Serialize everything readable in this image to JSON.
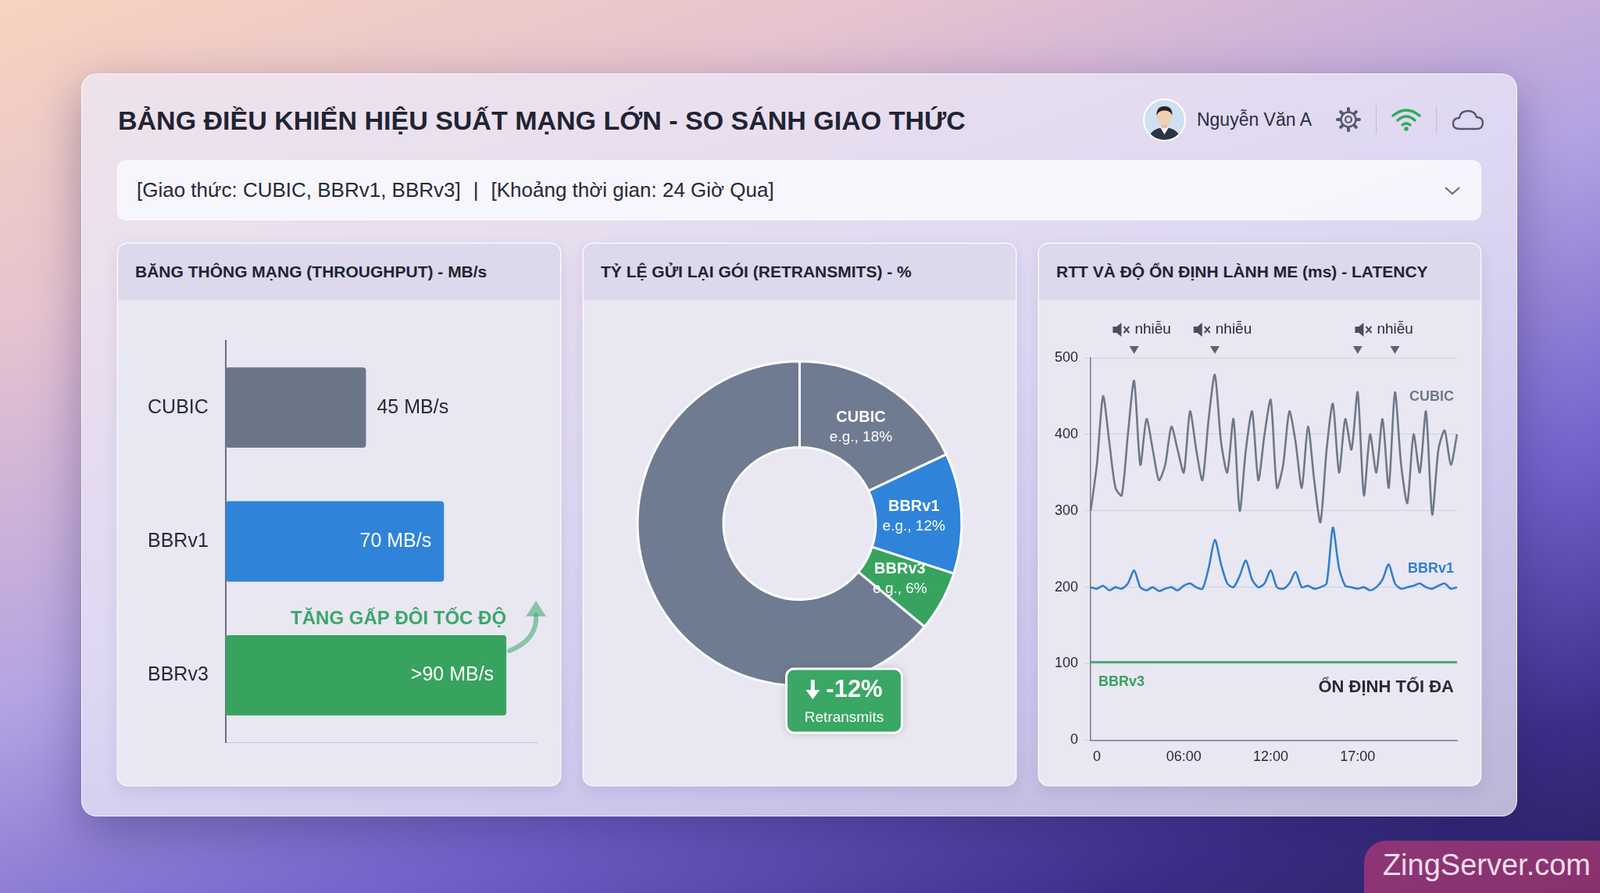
{
  "header": {
    "title": "BẢNG ĐIỀU KHIỂN HIỆU SUẤT MẠNG LỚN - SO SÁNH GIAO THỨC",
    "user": "Nguyễn Văn A",
    "filters": [
      "[Giao thức: CUBIC, BBRv1, BBRv3]",
      "[Khoảng thời gian: 24 Giờ Qua]"
    ],
    "separator": "|"
  },
  "watermark": "ZingServer.com",
  "chart_data": [
    {
      "type": "bar",
      "title": "BĂNG THÔNG MẠNG (THROUGHPUT) - MB/s",
      "orientation": "horizontal",
      "categories": [
        "CUBIC",
        "BBRv1",
        "BBRv3"
      ],
      "values": [
        45,
        70,
        90
      ],
      "value_labels": [
        "45 MB/s",
        "70 MB/s",
        ">90 MB/s"
      ],
      "colors": [
        "#6b7689",
        "#2f84d9",
        "#37a35f"
      ],
      "xlim": [
        0,
        100
      ],
      "tick_labels": "y",
      "data_labels": true,
      "grid": false,
      "annotations": [
        {
          "text": "TĂNG GẤP ĐÔI TỐC ĐỘ",
          "color": "#3aa76a"
        }
      ]
    },
    {
      "type": "doughnut",
      "title": "TỶ LỆ GỬI LẠI GÓI (RETRANSMITS) - %",
      "categories": [
        "CUBIC",
        "BBRv1",
        "BBRv3",
        null
      ],
      "values": [
        18,
        12,
        6,
        64
      ],
      "value_labels": [
        "e.g., 18%",
        "e.g., 12%",
        "e.g., 6%",
        null
      ],
      "colors": [
        "#6f7b90",
        "#2f84d9",
        "#37a35f",
        "#6f7b90"
      ],
      "data_labels": true,
      "annotations": [
        {
          "text": "-12%",
          "subtext": "Retransmits",
          "color": "#3aa765"
        }
      ]
    },
    {
      "type": "line",
      "title": "RTT VÀ ĐỘ ỔN ĐỊNH LÀNH ME (ms) - LATENCY",
      "categories": [
        null,
        "0",
        null,
        null,
        null,
        null,
        null,
        null,
        null,
        null,
        null,
        null,
        null,
        null,
        null,
        "06:00",
        null,
        null,
        null,
        null,
        null,
        null,
        null,
        null,
        null,
        null,
        null,
        null,
        null,
        "12:00",
        null,
        null,
        null,
        null,
        null,
        null,
        null,
        null,
        null,
        null,
        null,
        null,
        null,
        "17:00",
        null,
        null,
        null,
        null,
        null,
        null,
        null,
        null,
        null,
        null,
        null,
        null,
        null,
        null,
        null,
        null
      ],
      "series": [
        {
          "name": "CUBIC",
          "color": "#6e7889",
          "values": [
            300,
            360,
            450,
            390,
            330,
            320,
            400,
            470,
            360,
            420,
            380,
            340,
            360,
            410,
            380,
            350,
            430,
            380,
            340,
            420,
            478,
            390,
            350,
            420,
            300,
            380,
            430,
            340,
            400,
            445,
            330,
            360,
            430,
            390,
            330,
            410,
            340,
            285,
            380,
            440,
            350,
            420,
            380,
            455,
            320,
            400,
            350,
            420,
            330,
            455,
            360,
            310,
            400,
            350,
            430,
            295,
            380,
            405,
            360,
            400
          ]
        },
        {
          "name": "BBRv1",
          "color": "#2e7fd3",
          "values": [
            200,
            198,
            202,
            196,
            200,
            198,
            205,
            222,
            200,
            196,
            200,
            195,
            198,
            200,
            196,
            202,
            205,
            200,
            198,
            225,
            262,
            230,
            205,
            200,
            215,
            235,
            210,
            200,
            205,
            222,
            200,
            198,
            205,
            220,
            200,
            202,
            198,
            200,
            205,
            278,
            225,
            202,
            200,
            198,
            200,
            196,
            200,
            210,
            230,
            205,
            198,
            200,
            202,
            205,
            200,
            198,
            202,
            205,
            198,
            200
          ]
        },
        {
          "name": "BBRv3",
          "color": "#34a35e",
          "values": [
            102,
            102,
            102,
            102,
            102,
            102,
            102,
            102,
            102,
            102,
            102,
            102,
            102,
            102,
            102,
            102,
            102,
            102,
            102,
            102,
            102,
            102,
            102,
            102,
            102,
            102,
            102,
            102,
            102,
            102,
            102,
            102,
            102,
            102,
            102,
            102,
            102,
            102,
            102,
            102,
            102,
            102,
            102,
            102,
            102,
            102,
            102,
            102,
            102,
            102,
            102,
            102,
            102,
            102,
            102,
            102,
            102,
            102,
            102,
            102
          ]
        }
      ],
      "ylim": [
        0,
        500
      ],
      "yticks": [
        0,
        100,
        200,
        300,
        400,
        500
      ],
      "grid": true,
      "annotations": [
        {
          "text": "nhiễu",
          "points": [
            7
          ]
        },
        {
          "text": "nhiễu",
          "points": [
            20
          ]
        },
        {
          "text": "nhiễu",
          "points": [
            43,
            49
          ]
        },
        {
          "text": "ỔN ĐỊNH TỐI ĐA"
        }
      ]
    }
  ]
}
